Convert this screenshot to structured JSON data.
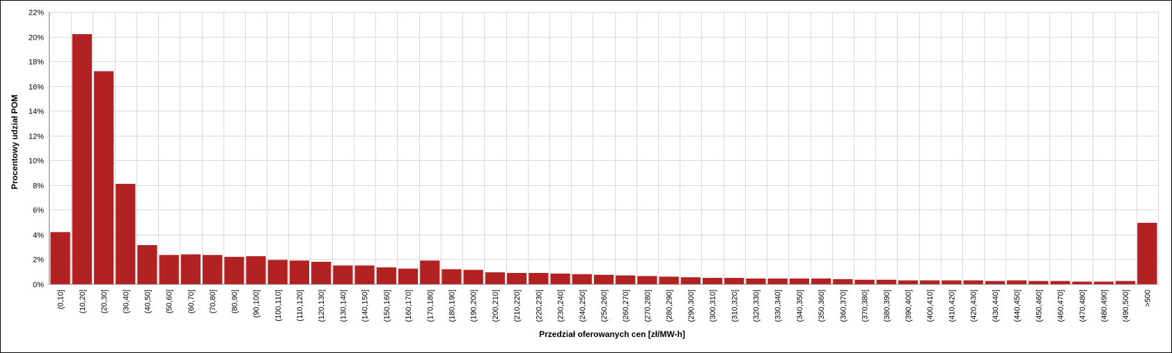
{
  "chart_data": {
    "type": "bar",
    "title": "",
    "xlabel": "Przedział oferowanych cen [zł/MW-h]",
    "ylabel": "Procentowy udział POM",
    "ylim": [
      0,
      22
    ],
    "ytick_step": 2,
    "ytick_suffix": "%",
    "grid": true,
    "bar_color": "#b22222",
    "grid_color": "#d9d9d9",
    "categories": [
      "(0,10]",
      "(10,20]",
      "(20,30]",
      "(30,40]",
      "(40,50]",
      "(50,60]",
      "(60,70]",
      "(70,80]",
      "(80,90]",
      "(90,100]",
      "(100,110]",
      "(110,120]",
      "(120,130]",
      "(130,140]",
      "(140,150]",
      "(150,160]",
      "(160,170]",
      "(170,180]",
      "(180,190]",
      "(190,200]",
      "(200,210]",
      "(210,220]",
      "(220,230]",
      "(230,240]",
      "(240,250]",
      "(250,260]",
      "(260,270]",
      "(270,280]",
      "(280,290]",
      "(290,300]",
      "(300,310]",
      "(310,320]",
      "(320,330]",
      "(330,340]",
      "(340,350]",
      "(350,360]",
      "(360,370]",
      "(370,380]",
      "(380,390]",
      "(390,400]",
      "(400,410]",
      "(410,420]",
      "(420,430]",
      "(430,440]",
      "(440,450]",
      "(450,460]",
      "(460,470]",
      "(470,480]",
      "(480,490]",
      "(490,500]",
      ">500"
    ],
    "values": [
      4.2,
      20.2,
      17.2,
      8.1,
      3.15,
      2.35,
      2.4,
      2.35,
      2.2,
      2.25,
      1.95,
      1.9,
      1.8,
      1.5,
      1.5,
      1.35,
      1.25,
      1.9,
      1.2,
      1.15,
      0.95,
      0.9,
      0.9,
      0.85,
      0.8,
      0.75,
      0.7,
      0.65,
      0.6,
      0.55,
      0.5,
      0.5,
      0.45,
      0.45,
      0.45,
      0.45,
      0.4,
      0.35,
      0.35,
      0.3,
      0.3,
      0.3,
      0.3,
      0.25,
      0.3,
      0.25,
      0.25,
      0.2,
      0.2,
      0.25,
      4.95
    ]
  }
}
